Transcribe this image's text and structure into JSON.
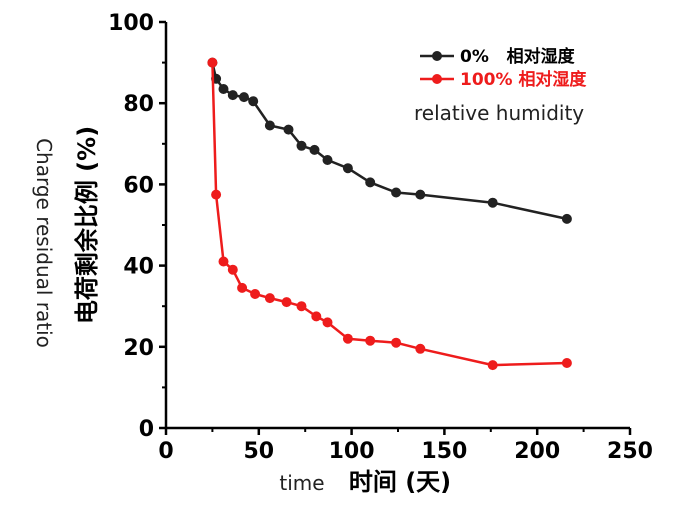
{
  "chart_data": {
    "type": "line",
    "xlabel_en": "time",
    "xlabel_cn": "时间 (天)",
    "ylabel_cn": "电荷剩余比例 (%)",
    "ylabel_en": "Charge residual ratio",
    "annotation": "relative humidity",
    "xlim": [
      0,
      250
    ],
    "ylim": [
      0,
      100
    ],
    "x_ticks": [
      "0",
      "50",
      "100",
      "150",
      "200",
      "250"
    ],
    "y_ticks": [
      "0",
      "20",
      "40",
      "60",
      "80",
      "100"
    ],
    "legend_position": "top-right",
    "series": [
      {
        "name": "0%   相对湿度",
        "color": "#222222",
        "x": [
          25,
          27,
          31,
          36,
          42,
          47,
          56,
          66,
          73,
          80,
          87,
          98,
          110,
          124,
          137,
          176,
          216
        ],
        "y": [
          90,
          86,
          83.5,
          82,
          81.5,
          80.5,
          74.5,
          73.5,
          69.5,
          68.5,
          66,
          64,
          60.5,
          58,
          57.5,
          55.5,
          51.5
        ]
      },
      {
        "name": "100% 相对湿度",
        "color": "#ee1c1c",
        "x": [
          25,
          27,
          31,
          36,
          41,
          48,
          56,
          65,
          73,
          81,
          87,
          98,
          110,
          124,
          137,
          176,
          216
        ],
        "y": [
          90,
          57.5,
          41,
          39,
          34.5,
          33,
          32,
          31,
          30,
          27.5,
          26,
          22,
          21.5,
          21,
          19.5,
          15.5,
          16
        ]
      }
    ]
  }
}
